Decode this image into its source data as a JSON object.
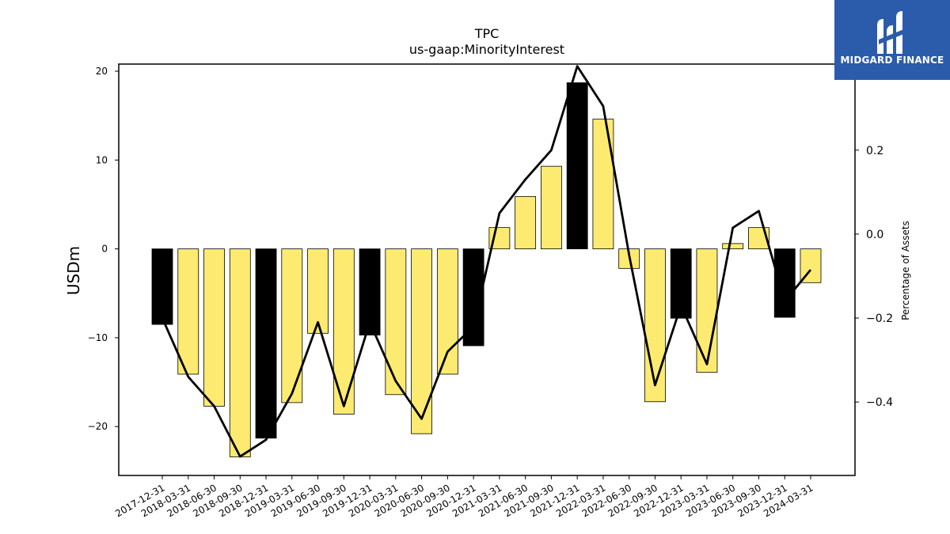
{
  "brand": {
    "name": "MIDGARD FINANCE",
    "color": "#2b5cab"
  },
  "chart_data": {
    "type": "bar",
    "title": "TPC",
    "subtitle": "us-gaap:MinorityInterest",
    "ylabel": "USDm",
    "y2label": "Percentage of Assets",
    "ylim": [
      -25.5,
      20.8
    ],
    "y2lim": [
      -0.575,
      0.405
    ],
    "yticks": [
      20,
      10,
      0,
      -10,
      -20
    ],
    "y2ticks": [
      0.4,
      0.2,
      0.0,
      -0.2,
      -0.4
    ],
    "ytick_labels": [
      "20",
      "10",
      "0",
      "−10",
      "−20"
    ],
    "y2tick_labels": [
      "0.4",
      "0.2",
      "0.0",
      "−0.2",
      "−0.4"
    ],
    "categories": [
      "2017-12-31",
      "2018-03-31",
      "2018-06-30",
      "2018-09-30",
      "2018-12-31",
      "2019-03-31",
      "2019-06-30",
      "2019-09-30",
      "2019-12-31",
      "2020-03-31",
      "2020-06-30",
      "2020-09-30",
      "2020-12-31",
      "2021-03-31",
      "2021-06-30",
      "2021-09-30",
      "2021-12-31",
      "2022-03-31",
      "2022-06-30",
      "2022-09-30",
      "2022-12-31",
      "2023-03-31",
      "2023-06-30",
      "2023-09-30",
      "2023-12-31",
      "2024-03-31"
    ],
    "series": [
      {
        "type": "bar",
        "axis": "left",
        "values": [
          -8.5,
          -14.1,
          -17.7,
          -23.4,
          -21.3,
          -17.3,
          -9.5,
          -18.6,
          -9.7,
          -16.4,
          -20.8,
          -14.1,
          -10.9,
          2.4,
          5.9,
          9.3,
          18.7,
          14.6,
          -2.2,
          -17.2,
          -7.8,
          -13.9,
          0.6,
          2.4,
          -7.7,
          -3.8
        ],
        "year_end": [
          true,
          false,
          false,
          false,
          true,
          false,
          false,
          false,
          true,
          false,
          false,
          false,
          true,
          false,
          false,
          false,
          true,
          false,
          false,
          false,
          true,
          false,
          false,
          false,
          true,
          false
        ],
        "colors": {
          "year_end": "#000000",
          "quarter": "#fdeb71"
        }
      },
      {
        "type": "line",
        "axis": "right",
        "values": [
          -0.2,
          -0.34,
          -0.41,
          -0.53,
          -0.49,
          -0.38,
          -0.21,
          -0.41,
          -0.21,
          -0.35,
          -0.44,
          -0.28,
          -0.22,
          0.05,
          0.13,
          0.2,
          0.4,
          0.305,
          -0.05,
          -0.36,
          -0.17,
          -0.31,
          0.015,
          0.055,
          -0.16,
          -0.085
        ],
        "color": "#000000"
      }
    ]
  }
}
